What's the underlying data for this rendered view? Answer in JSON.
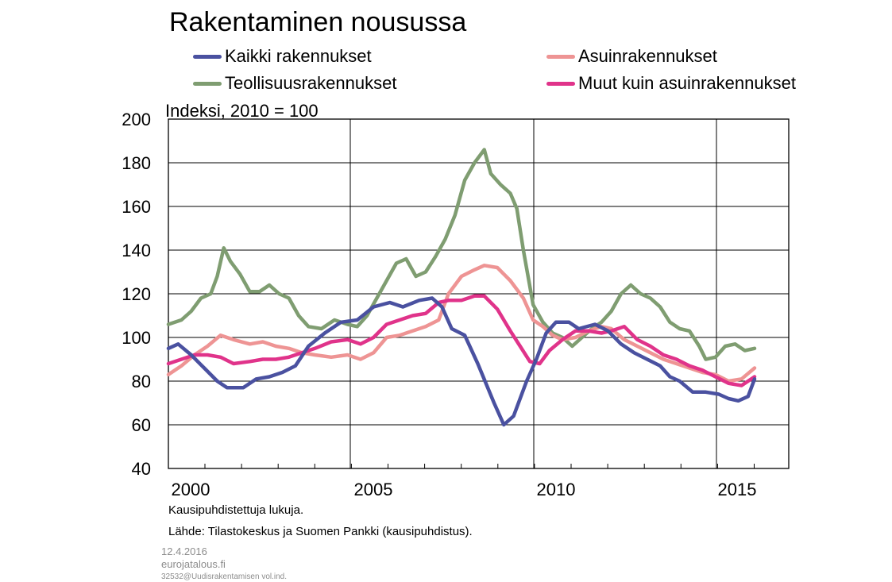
{
  "chart_data": {
    "type": "line",
    "title": "Rakentaminen nousussa",
    "unit_label": "Indeksi, 2010 = 100",
    "ylim": [
      40,
      200
    ],
    "yticks": [
      40,
      60,
      80,
      100,
      120,
      140,
      160,
      180,
      200
    ],
    "xlim": [
      1999.5,
      2016.5
    ],
    "xticks": [
      2000,
      2005,
      2010,
      2015
    ],
    "xtick_labels": [
      "2000",
      "2005",
      "2010",
      "2015"
    ],
    "grid": "vertical lines at year-multiples of 5, horizontal at every 20",
    "legend_position": "top",
    "series": [
      {
        "name": "Kaikki rakennukset",
        "color": "#4a51a0",
        "points": [
          [
            1999.5,
            95
          ],
          [
            1999.8,
            97
          ],
          [
            2000.2,
            92
          ],
          [
            2000.6,
            86
          ],
          [
            2001.0,
            80
          ],
          [
            2001.3,
            77
          ],
          [
            2001.8,
            77
          ],
          [
            2002.2,
            81
          ],
          [
            2002.6,
            82
          ],
          [
            2003.0,
            84
          ],
          [
            2003.4,
            87
          ],
          [
            2003.8,
            96
          ],
          [
            2004.3,
            102
          ],
          [
            2004.8,
            107
          ],
          [
            2005.3,
            108
          ],
          [
            2005.8,
            114
          ],
          [
            2006.3,
            116
          ],
          [
            2006.7,
            114
          ],
          [
            2007.2,
            117
          ],
          [
            2007.6,
            118
          ],
          [
            2007.9,
            114
          ],
          [
            2008.2,
            104
          ],
          [
            2008.6,
            101
          ],
          [
            2009.0,
            88
          ],
          [
            2009.5,
            70
          ],
          [
            2009.8,
            60
          ],
          [
            2010.1,
            64
          ],
          [
            2010.5,
            80
          ],
          [
            2010.8,
            90
          ],
          [
            2011.1,
            102
          ],
          [
            2011.4,
            107
          ],
          [
            2011.8,
            107
          ],
          [
            2012.1,
            104
          ],
          [
            2012.6,
            106
          ],
          [
            2013.0,
            103
          ],
          [
            2013.4,
            97
          ],
          [
            2013.8,
            93
          ],
          [
            2014.2,
            90
          ],
          [
            2014.6,
            87
          ],
          [
            2014.9,
            82
          ],
          [
            2015.2,
            80
          ],
          [
            2015.6,
            75
          ],
          [
            2016.0,
            75
          ],
          [
            2016.4,
            74
          ],
          [
            2016.7,
            72
          ],
          [
            2017.0,
            71
          ],
          [
            2017.3,
            73
          ],
          [
            2017.5,
            81
          ]
        ]
      },
      {
        "name": "Asuinrakennukset",
        "color": "#ee9494",
        "points": [
          [
            1999.5,
            83
          ],
          [
            1999.9,
            87
          ],
          [
            2000.3,
            92
          ],
          [
            2000.7,
            96
          ],
          [
            2001.1,
            101
          ],
          [
            2001.5,
            99
          ],
          [
            2002.0,
            97
          ],
          [
            2002.4,
            98
          ],
          [
            2002.8,
            96
          ],
          [
            2003.2,
            95
          ],
          [
            2003.6,
            93
          ],
          [
            2004.0,
            92
          ],
          [
            2004.5,
            91
          ],
          [
            2005.0,
            92
          ],
          [
            2005.4,
            90
          ],
          [
            2005.8,
            93
          ],
          [
            2006.2,
            100
          ],
          [
            2006.6,
            101
          ],
          [
            2007.0,
            103
          ],
          [
            2007.4,
            105
          ],
          [
            2007.8,
            108
          ],
          [
            2008.1,
            120
          ],
          [
            2008.5,
            128
          ],
          [
            2008.9,
            131
          ],
          [
            2009.2,
            133
          ],
          [
            2009.6,
            132
          ],
          [
            2010.0,
            126
          ],
          [
            2010.4,
            118
          ],
          [
            2010.7,
            108
          ],
          [
            2011.0,
            105
          ],
          [
            2011.3,
            101
          ],
          [
            2011.6,
            99
          ],
          [
            2012.0,
            100
          ],
          [
            2012.4,
            103
          ],
          [
            2012.8,
            105
          ],
          [
            2013.1,
            104
          ],
          [
            2013.5,
            99
          ],
          [
            2013.9,
            96
          ],
          [
            2014.3,
            93
          ],
          [
            2014.7,
            90
          ],
          [
            2015.1,
            88
          ],
          [
            2015.5,
            86
          ],
          [
            2015.9,
            84
          ],
          [
            2016.3,
            83
          ],
          [
            2016.7,
            80
          ],
          [
            2017.1,
            81
          ],
          [
            2017.5,
            86
          ]
        ]
      },
      {
        "name": "Teollisuusrakennukset",
        "color": "#7f9d71",
        "points": [
          [
            1999.5,
            106
          ],
          [
            1999.9,
            108
          ],
          [
            2000.2,
            112
          ],
          [
            2000.5,
            118
          ],
          [
            2000.8,
            120
          ],
          [
            2001.0,
            128
          ],
          [
            2001.2,
            141
          ],
          [
            2001.4,
            135
          ],
          [
            2001.7,
            129
          ],
          [
            2002.0,
            121
          ],
          [
            2002.3,
            121
          ],
          [
            2002.6,
            124
          ],
          [
            2002.9,
            120
          ],
          [
            2003.2,
            118
          ],
          [
            2003.5,
            110
          ],
          [
            2003.8,
            105
          ],
          [
            2004.2,
            104
          ],
          [
            2004.6,
            108
          ],
          [
            2005.0,
            106
          ],
          [
            2005.3,
            105
          ],
          [
            2005.6,
            110
          ],
          [
            2005.9,
            118
          ],
          [
            2006.2,
            126
          ],
          [
            2006.5,
            134
          ],
          [
            2006.8,
            136
          ],
          [
            2007.1,
            128
          ],
          [
            2007.4,
            130
          ],
          [
            2007.7,
            137
          ],
          [
            2008.0,
            145
          ],
          [
            2008.3,
            156
          ],
          [
            2008.6,
            172
          ],
          [
            2008.9,
            180
          ],
          [
            2009.2,
            186
          ],
          [
            2009.4,
            175
          ],
          [
            2009.7,
            170
          ],
          [
            2010.0,
            166
          ],
          [
            2010.2,
            159
          ],
          [
            2010.4,
            140
          ],
          [
            2010.7,
            115
          ],
          [
            2011.0,
            107
          ],
          [
            2011.3,
            102
          ],
          [
            2011.6,
            100
          ],
          [
            2011.9,
            96
          ],
          [
            2012.2,
            100
          ],
          [
            2012.5,
            104
          ],
          [
            2012.8,
            107
          ],
          [
            2013.1,
            112
          ],
          [
            2013.4,
            120
          ],
          [
            2013.7,
            124
          ],
          [
            2014.0,
            120
          ],
          [
            2014.3,
            118
          ],
          [
            2014.6,
            114
          ],
          [
            2014.9,
            107
          ],
          [
            2015.2,
            104
          ],
          [
            2015.5,
            103
          ],
          [
            2015.8,
            96
          ],
          [
            2016.0,
            90
          ],
          [
            2016.3,
            91
          ],
          [
            2016.6,
            96
          ],
          [
            2016.9,
            97
          ],
          [
            2017.2,
            94
          ],
          [
            2017.5,
            95
          ]
        ]
      },
      {
        "name": "Muut kuin asuinrakennukset",
        "color": "#e0338a",
        "points": [
          [
            1999.5,
            88
          ],
          [
            1999.9,
            90
          ],
          [
            2000.3,
            92
          ],
          [
            2000.7,
            92
          ],
          [
            2001.1,
            91
          ],
          [
            2001.5,
            88
          ],
          [
            2002.0,
            89
          ],
          [
            2002.4,
            90
          ],
          [
            2002.8,
            90
          ],
          [
            2003.2,
            91
          ],
          [
            2003.6,
            93
          ],
          [
            2004.0,
            95
          ],
          [
            2004.5,
            98
          ],
          [
            2005.0,
            99
          ],
          [
            2005.4,
            97
          ],
          [
            2005.8,
            100
          ],
          [
            2006.2,
            106
          ],
          [
            2006.6,
            108
          ],
          [
            2007.0,
            110
          ],
          [
            2007.4,
            111
          ],
          [
            2007.8,
            116
          ],
          [
            2008.1,
            117
          ],
          [
            2008.5,
            117
          ],
          [
            2008.9,
            119
          ],
          [
            2009.2,
            119
          ],
          [
            2009.6,
            113
          ],
          [
            2010.0,
            103
          ],
          [
            2010.3,
            96
          ],
          [
            2010.6,
            89
          ],
          [
            2010.9,
            88
          ],
          [
            2011.2,
            94
          ],
          [
            2011.6,
            99
          ],
          [
            2012.0,
            103
          ],
          [
            2012.4,
            103
          ],
          [
            2012.8,
            102
          ],
          [
            2013.1,
            103
          ],
          [
            2013.5,
            105
          ],
          [
            2013.9,
            99
          ],
          [
            2014.3,
            96
          ],
          [
            2014.7,
            92
          ],
          [
            2015.1,
            90
          ],
          [
            2015.5,
            87
          ],
          [
            2015.9,
            85
          ],
          [
            2016.3,
            82
          ],
          [
            2016.7,
            79
          ],
          [
            2017.1,
            78
          ],
          [
            2017.5,
            82
          ]
        ]
      }
    ]
  },
  "notes": {
    "line1": "Kausipuhdistettuja  lukuja.",
    "line2": "Lähde: Tilastokeskus ja Suomen Pankki (kausipuhdistus)."
  },
  "footer": {
    "date": "12.4.2016",
    "site": "eurojatalous.fi",
    "code": "32532@Uudisrakentamisen vol.ind."
  }
}
